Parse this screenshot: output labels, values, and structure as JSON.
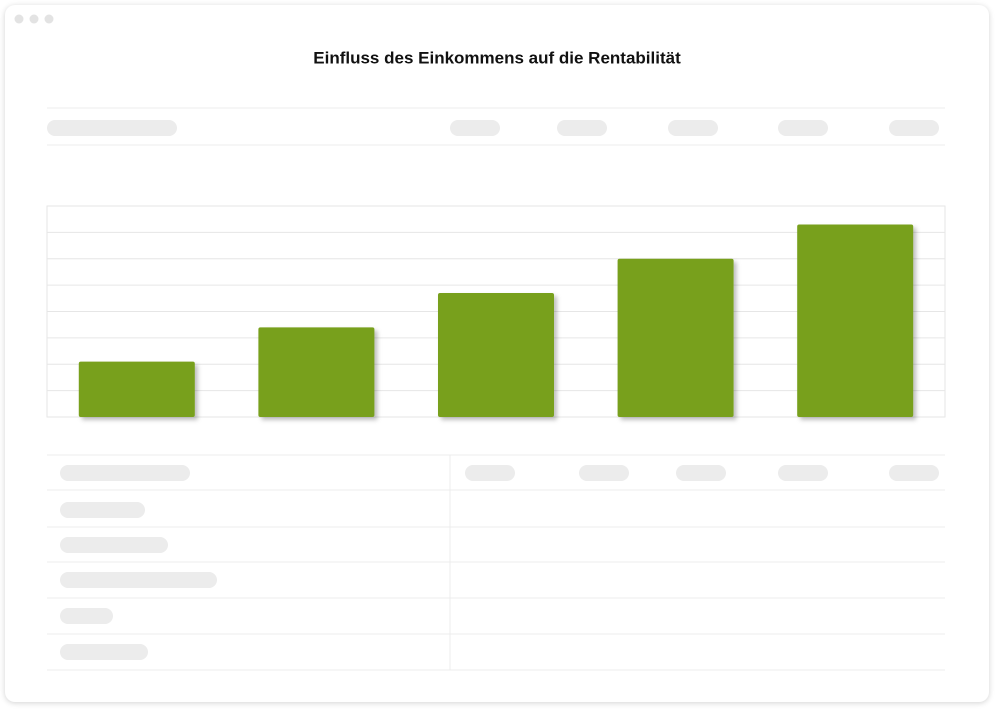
{
  "chart_data": {
    "type": "bar",
    "title": "Einfluss des Einkommens auf die Rentabilität",
    "categories": [
      null,
      null,
      null,
      null,
      null
    ],
    "values": [
      2.1,
      3.4,
      4.7,
      6.0,
      7.3
    ],
    "color": "#78a01e",
    "ylim": [
      0,
      8
    ],
    "yticks": [
      0,
      1,
      2,
      3,
      4,
      5,
      6,
      7,
      8
    ],
    "grid": true
  }
}
